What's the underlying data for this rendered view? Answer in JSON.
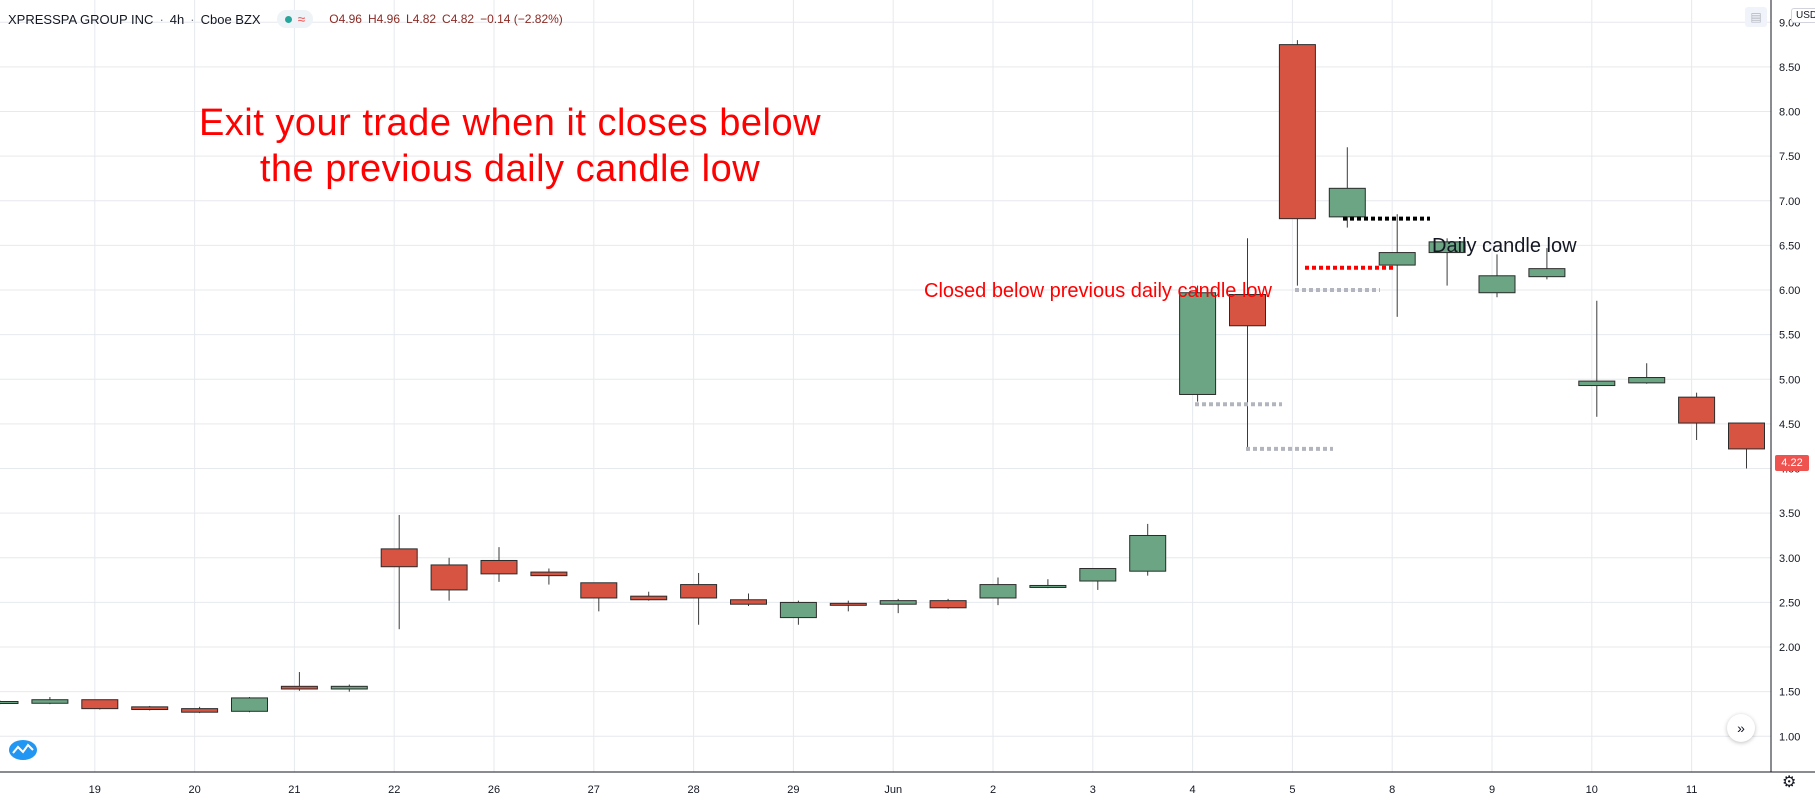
{
  "header": {
    "symbol": "XPRESSPA GROUP INC",
    "interval": "4h",
    "exchange": "Cboe BZX",
    "ohlc": {
      "open": "O4.96",
      "high": "H4.96",
      "low": "L4.82",
      "close": "C4.82",
      "change": "−0.14 (−2.82%)"
    }
  },
  "currency": "USD",
  "last_price": "4.22",
  "annotations": {
    "main_line1": "Exit your trade when it closes below",
    "main_line2": "the previous daily candle low",
    "closed_below": "Closed below previous daily candle low",
    "daily_low": "Daily candle low"
  },
  "icons": [
    "tradingview-logo-icon",
    "scroll-right-icon",
    "settings-gear-icon",
    "status-dot-icon",
    "wave-icon"
  ],
  "colors": {
    "up": "#6ba583",
    "down": "#d75442",
    "annotation": "#ff0000",
    "grid": "#e6e9ee",
    "axis_text": "#131722"
  },
  "chart_data": {
    "type": "candlestick",
    "title": "XPRESSPA GROUP INC · 4h · Cboe BZX",
    "ylim": [
      0.6,
      9.25
    ],
    "yticks": [
      "9.00",
      "8.50",
      "8.00",
      "7.50",
      "7.00",
      "6.50",
      "6.00",
      "5.50",
      "5.00",
      "4.50",
      "4.00",
      "3.50",
      "3.00",
      "2.50",
      "2.00",
      "1.50",
      "1.00"
    ],
    "xticks": [
      "19",
      "20",
      "21",
      "22",
      "26",
      "27",
      "28",
      "29",
      "Jun",
      "2",
      "3",
      "4",
      "5",
      "8",
      "9",
      "10",
      "11"
    ],
    "grid": true,
    "candles": [
      {
        "o": 1.38,
        "h": 1.4,
        "l": 1.36,
        "c": 1.39
      },
      {
        "o": 1.37,
        "h": 1.44,
        "l": 1.36,
        "c": 1.41
      },
      {
        "o": 1.41,
        "h": 1.41,
        "l": 1.3,
        "c": 1.31
      },
      {
        "o": 1.33,
        "h": 1.34,
        "l": 1.29,
        "c": 1.3
      },
      {
        "o": 1.31,
        "h": 1.33,
        "l": 1.26,
        "c": 1.27
      },
      {
        "o": 1.28,
        "h": 1.44,
        "l": 1.27,
        "c": 1.43
      },
      {
        "o": 1.56,
        "h": 1.72,
        "l": 1.51,
        "c": 1.53
      },
      {
        "o": 1.53,
        "h": 1.58,
        "l": 1.5,
        "c": 1.56
      },
      {
        "o": 3.1,
        "h": 3.48,
        "l": 2.2,
        "c": 2.9
      },
      {
        "o": 2.92,
        "h": 3.0,
        "l": 2.52,
        "c": 2.64
      },
      {
        "o": 2.97,
        "h": 3.12,
        "l": 2.73,
        "c": 2.82
      },
      {
        "o": 2.84,
        "h": 2.88,
        "l": 2.7,
        "c": 2.8
      },
      {
        "o": 2.72,
        "h": 2.72,
        "l": 2.4,
        "c": 2.55
      },
      {
        "o": 2.57,
        "h": 2.62,
        "l": 2.52,
        "c": 2.53
      },
      {
        "o": 2.7,
        "h": 2.83,
        "l": 2.25,
        "c": 2.55
      },
      {
        "o": 2.53,
        "h": 2.6,
        "l": 2.46,
        "c": 2.48
      },
      {
        "o": 2.33,
        "h": 2.52,
        "l": 2.25,
        "c": 2.5
      },
      {
        "o": 2.49,
        "h": 2.52,
        "l": 2.4,
        "c": 2.48
      },
      {
        "o": 2.48,
        "h": 2.54,
        "l": 2.38,
        "c": 2.52
      },
      {
        "o": 2.52,
        "h": 2.54,
        "l": 2.43,
        "c": 2.44
      },
      {
        "o": 2.55,
        "h": 2.78,
        "l": 2.47,
        "c": 2.7
      },
      {
        "o": 2.67,
        "h": 2.76,
        "l": 2.66,
        "c": 2.69
      },
      {
        "o": 2.74,
        "h": 2.88,
        "l": 2.64,
        "c": 2.88
      },
      {
        "o": 2.85,
        "h": 3.38,
        "l": 2.8,
        "c": 3.25
      },
      {
        "o": 4.83,
        "h": 6.05,
        "l": 4.75,
        "c": 5.97
      },
      {
        "o": 5.95,
        "h": 6.58,
        "l": 4.2,
        "c": 5.6
      },
      {
        "o": 8.75,
        "h": 8.8,
        "l": 6.05,
        "c": 6.8
      },
      {
        "o": 6.82,
        "h": 7.6,
        "l": 6.7,
        "c": 7.14
      },
      {
        "o": 6.28,
        "h": 6.85,
        "l": 5.7,
        "c": 6.42
      },
      {
        "o": 6.42,
        "h": 6.58,
        "l": 6.05,
        "c": 6.54
      },
      {
        "o": 5.97,
        "h": 6.4,
        "l": 5.92,
        "c": 6.16
      },
      {
        "o": 6.15,
        "h": 6.47,
        "l": 6.12,
        "c": 6.24
      },
      {
        "o": 4.93,
        "h": 5.88,
        "l": 4.58,
        "c": 4.98
      },
      {
        "o": 4.96,
        "h": 5.18,
        "l": 4.95,
        "c": 5.02
      },
      {
        "o": 4.8,
        "h": 4.85,
        "l": 4.32,
        "c": 4.51
      },
      {
        "o": 4.51,
        "h": 4.51,
        "l": 4.0,
        "c": 4.22
      }
    ],
    "annotation_lines": [
      {
        "label": "Daily candle low",
        "value": 6.8,
        "style": "dotted",
        "color": "#000000"
      },
      {
        "label": "Closed below previous daily candle low",
        "value": 6.25,
        "style": "dotted",
        "color": "#ff0000"
      },
      {
        "value": 6.0,
        "style": "dotted",
        "color": "#b2b5be"
      },
      {
        "value": 4.72,
        "style": "dotted",
        "color": "#b2b5be"
      },
      {
        "value": 4.22,
        "style": "dotted",
        "color": "#b2b5be"
      }
    ]
  }
}
